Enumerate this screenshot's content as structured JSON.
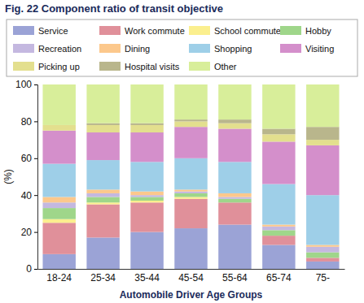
{
  "chart_data": {
    "type": "bar",
    "title": "Fig. 22  Component ratio of transit objective",
    "x_label": "Automobile Driver Age Groups",
    "y_label": "(%)",
    "categories": [
      "18-24",
      "25-34",
      "35-44",
      "45-54",
      "55-64",
      "65-74",
      "75-"
    ],
    "stacked": true,
    "legend": "top",
    "grid": false,
    "ylim": [
      0,
      100
    ],
    "yticks": [
      0,
      20,
      40,
      60,
      80,
      100
    ],
    "series": [
      {
        "name": "Service",
        "color": "#9ba3d6",
        "values": [
          8,
          17,
          20,
          22,
          24,
          13,
          4
        ]
      },
      {
        "name": "Work commute",
        "color": "#e0909a",
        "values": [
          17,
          18,
          16,
          16,
          12,
          5,
          2
        ]
      },
      {
        "name": "School commute",
        "color": "#fbef8e",
        "values": [
          2,
          1,
          1,
          1,
          0,
          0,
          0
        ]
      },
      {
        "name": "Hobby",
        "color": "#9fd68a",
        "values": [
          6,
          3,
          2,
          2,
          2,
          3,
          3
        ]
      },
      {
        "name": "Recreation",
        "color": "#c4b8e0",
        "values": [
          3,
          2,
          1,
          1,
          1,
          2,
          3
        ]
      },
      {
        "name": "Dining",
        "color": "#fcc88c",
        "values": [
          3,
          2,
          2,
          1,
          2,
          1,
          1
        ]
      },
      {
        "name": "Shopping",
        "color": "#9ecfe8",
        "values": [
          18,
          16,
          16,
          17,
          17,
          22,
          27
        ]
      },
      {
        "name": "Visiting",
        "color": "#d48fcb",
        "values": [
          18,
          15,
          16,
          17,
          18,
          23,
          27
        ]
      },
      {
        "name": "Picking up",
        "color": "#e3df8e",
        "values": [
          3,
          4,
          4,
          3,
          3,
          4,
          3
        ]
      },
      {
        "name": "Hospital visits",
        "color": "#b9b68c",
        "values": [
          0,
          1,
          1,
          1,
          2,
          3,
          7
        ]
      },
      {
        "name": "Other",
        "color": "#d8ee9a",
        "values": [
          22,
          21,
          21,
          19,
          19,
          24,
          23
        ]
      }
    ]
  }
}
